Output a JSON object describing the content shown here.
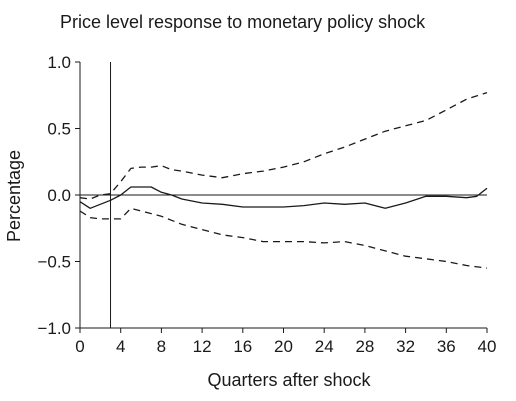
{
  "chart_data": {
    "type": "line",
    "title": "Price level response to monetary policy shock",
    "xlabel": "Quarters after shock",
    "ylabel": "Percentage",
    "xlim": [
      0,
      40
    ],
    "ylim": [
      -1.0,
      1.0
    ],
    "xticks": [
      0,
      4,
      8,
      12,
      16,
      20,
      24,
      28,
      32,
      36,
      40
    ],
    "xtick_labels": [
      "0",
      "4",
      "8",
      "12",
      "16",
      "20",
      "24",
      "28",
      "32",
      "36",
      "40"
    ],
    "yticks": [
      1.0,
      0.5,
      0.0,
      -0.5,
      -1.0
    ],
    "ytick_labels": [
      "1.0",
      "0.5",
      "0.0",
      "−0.5",
      "−1.0"
    ],
    "zero_line": 0,
    "reference_vline_x": 3,
    "grid": false,
    "legend": "none",
    "series": [
      {
        "style": "solid",
        "x": [
          0,
          1,
          2,
          3,
          4,
          5,
          6,
          7,
          8,
          9,
          10,
          12,
          14,
          16,
          18,
          20,
          22,
          24,
          26,
          28,
          30,
          32,
          34,
          36,
          38,
          39,
          40
        ],
        "y": [
          -0.05,
          -0.1,
          -0.07,
          -0.04,
          0.0,
          0.06,
          0.06,
          0.06,
          0.02,
          0.0,
          -0.03,
          -0.06,
          -0.07,
          -0.09,
          -0.09,
          -0.09,
          -0.08,
          -0.06,
          -0.07,
          -0.06,
          -0.1,
          -0.06,
          -0.01,
          -0.01,
          -0.02,
          -0.01,
          0.05
        ]
      },
      {
        "style": "dashed",
        "x": [
          0,
          1,
          2,
          3,
          4,
          5,
          6,
          7,
          8,
          9,
          10,
          12,
          14,
          16,
          18,
          20,
          22,
          24,
          26,
          28,
          30,
          32,
          34,
          36,
          38,
          40
        ],
        "y": [
          -0.02,
          -0.03,
          0.0,
          0.01,
          0.1,
          0.2,
          0.21,
          0.21,
          0.22,
          0.19,
          0.18,
          0.15,
          0.13,
          0.16,
          0.18,
          0.21,
          0.25,
          0.31,
          0.36,
          0.42,
          0.48,
          0.52,
          0.56,
          0.64,
          0.72,
          0.77
        ]
      },
      {
        "style": "dashed",
        "x": [
          0,
          1,
          2,
          3,
          4,
          5,
          6,
          7,
          8,
          9,
          10,
          12,
          14,
          16,
          18,
          20,
          22,
          24,
          26,
          28,
          30,
          32,
          34,
          36,
          38,
          40
        ],
        "y": [
          -0.12,
          -0.17,
          -0.18,
          -0.18,
          -0.18,
          -0.1,
          -0.12,
          -0.14,
          -0.16,
          -0.19,
          -0.22,
          -0.26,
          -0.3,
          -0.32,
          -0.35,
          -0.35,
          -0.35,
          -0.36,
          -0.35,
          -0.38,
          -0.42,
          -0.46,
          -0.48,
          -0.5,
          -0.53,
          -0.55
        ]
      }
    ]
  }
}
